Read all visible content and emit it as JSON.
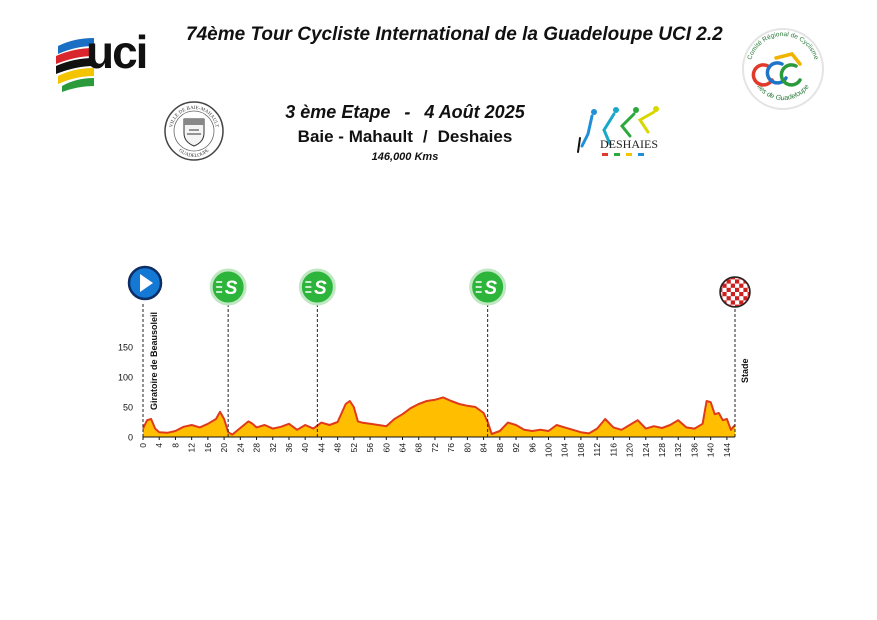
{
  "header": {
    "title": "74ème Tour Cycliste International de la Guadeloupe UCI 2.2",
    "stage": "3 ème Etape",
    "stage_sep": "-",
    "date": "4 Août  2025",
    "start_town": "Baie - Mahault",
    "route_sep": "/",
    "finish_town": "Deshaies",
    "distance": "146,000 Kms"
  },
  "logos": {
    "uci": {
      "text": "uci"
    },
    "comite": {
      "text_top": "Comité Régional de Cyclisme",
      "text_bottom": "Iles de Guadeloupe"
    },
    "baie_mahault": {
      "text_top": "VILLE DE BAIE-MAHAULT",
      "text_bottom": "GUADELOUPE"
    },
    "deshaies": {
      "text": "DESHAIES"
    }
  },
  "colors": {
    "profile_fill": "#ffbf00",
    "profile_line": "#e03a1a",
    "sprint_green": "#2db43a",
    "start_blue": "#1479d4",
    "finish_red": "#cc1f1f"
  },
  "chart_data": {
    "type": "area",
    "title": "",
    "xlabel": "",
    "ylabel": "",
    "xlim": [
      0,
      146
    ],
    "ylim": [
      0,
      150
    ],
    "grid": false,
    "x_ticks": [
      0,
      4,
      8,
      12,
      16,
      20,
      24,
      28,
      32,
      36,
      40,
      44,
      48,
      52,
      56,
      60,
      64,
      68,
      72,
      76,
      80,
      84,
      88,
      92,
      96,
      100,
      104,
      108,
      112,
      116,
      120,
      124,
      128,
      132,
      136,
      140,
      144
    ],
    "y_ticks": [
      0,
      50,
      100,
      150
    ],
    "profile": [
      [
        0,
        14
      ],
      [
        1,
        28
      ],
      [
        2,
        30
      ],
      [
        3,
        14
      ],
      [
        4,
        8
      ],
      [
        6,
        7
      ],
      [
        8,
        10
      ],
      [
        10,
        17
      ],
      [
        12,
        20
      ],
      [
        14,
        16
      ],
      [
        16,
        22
      ],
      [
        18,
        30
      ],
      [
        19,
        42
      ],
      [
        20,
        30
      ],
      [
        21,
        8
      ],
      [
        22,
        4
      ],
      [
        24,
        15
      ],
      [
        26,
        26
      ],
      [
        27,
        22
      ],
      [
        28,
        16
      ],
      [
        30,
        20
      ],
      [
        32,
        14
      ],
      [
        34,
        17
      ],
      [
        36,
        22
      ],
      [
        38,
        12
      ],
      [
        40,
        20
      ],
      [
        42,
        14
      ],
      [
        44,
        24
      ],
      [
        46,
        20
      ],
      [
        48,
        25
      ],
      [
        50,
        55
      ],
      [
        51,
        60
      ],
      [
        52,
        50
      ],
      [
        53,
        26
      ],
      [
        54,
        24
      ],
      [
        56,
        22
      ],
      [
        58,
        20
      ],
      [
        60,
        18
      ],
      [
        62,
        30
      ],
      [
        64,
        38
      ],
      [
        66,
        48
      ],
      [
        68,
        55
      ],
      [
        70,
        60
      ],
      [
        72,
        62
      ],
      [
        74,
        66
      ],
      [
        76,
        60
      ],
      [
        78,
        55
      ],
      [
        80,
        52
      ],
      [
        82,
        50
      ],
      [
        84,
        40
      ],
      [
        85,
        25
      ],
      [
        86,
        5
      ],
      [
        88,
        10
      ],
      [
        90,
        24
      ],
      [
        92,
        20
      ],
      [
        94,
        12
      ],
      [
        96,
        10
      ],
      [
        98,
        12
      ],
      [
        100,
        10
      ],
      [
        102,
        20
      ],
      [
        104,
        16
      ],
      [
        106,
        12
      ],
      [
        108,
        8
      ],
      [
        110,
        6
      ],
      [
        112,
        14
      ],
      [
        114,
        30
      ],
      [
        116,
        16
      ],
      [
        118,
        12
      ],
      [
        120,
        20
      ],
      [
        122,
        28
      ],
      [
        124,
        14
      ],
      [
        126,
        18
      ],
      [
        128,
        15
      ],
      [
        130,
        20
      ],
      [
        132,
        28
      ],
      [
        134,
        16
      ],
      [
        136,
        14
      ],
      [
        138,
        22
      ],
      [
        139,
        60
      ],
      [
        140,
        58
      ],
      [
        141,
        38
      ],
      [
        142,
        40
      ],
      [
        143,
        28
      ],
      [
        144,
        30
      ],
      [
        145,
        12
      ],
      [
        146,
        20
      ]
    ],
    "markers": [
      {
        "type": "start",
        "km": 0,
        "label": "Giratoire de Beausoleil"
      },
      {
        "type": "sprint",
        "km": 21,
        "label": "S"
      },
      {
        "type": "sprint",
        "km": 43,
        "label": "S"
      },
      {
        "type": "sprint",
        "km": 85,
        "label": "S"
      },
      {
        "type": "finish",
        "km": 146,
        "label": "Stade"
      }
    ]
  }
}
